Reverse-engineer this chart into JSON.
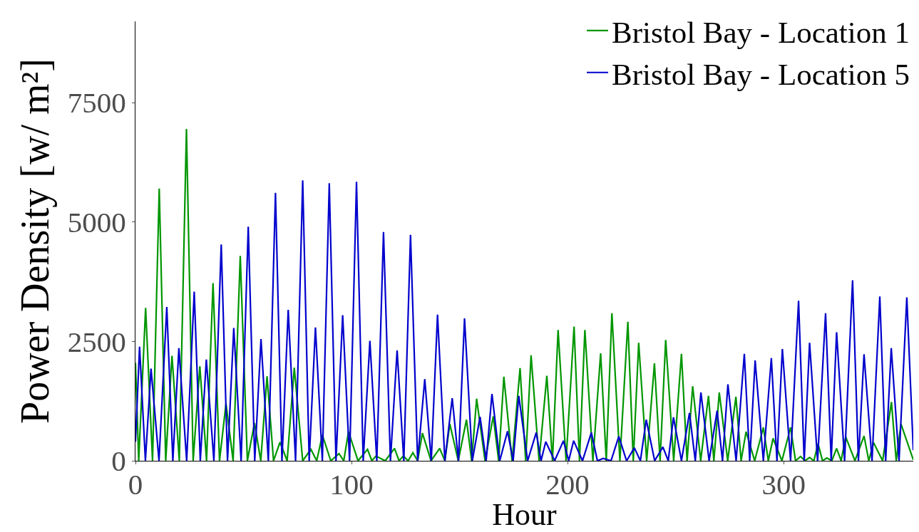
{
  "chart_data": {
    "type": "line",
    "xlabel": "Hour",
    "ylabel": "Power Density [w/ m²]",
    "xlim": [
      0,
      360
    ],
    "ylim": [
      0,
      9200
    ],
    "xticks": [
      0,
      100,
      200,
      300
    ],
    "yticks": [
      0,
      2500,
      5000,
      7500
    ],
    "grid": false,
    "legend": "top right",
    "marker": "none",
    "line_style": "solid",
    "series": [
      {
        "name": "Bristol Bay - Location 1",
        "color": "#009600",
        "x": [
          0,
          1.5,
          4.7,
          7.9,
          11.0,
          14.0,
          16.9,
          20.3,
          23.6,
          26.7,
          29.8,
          32.9,
          35.9,
          38.9,
          41.9,
          45.2,
          48.5,
          51.8,
          55.1,
          58.0,
          60.9,
          63.9,
          66.9,
          70.2,
          73.5,
          77.4,
          81.2,
          83.9,
          86.5,
          90.4,
          94.2,
          96.4,
          98.6,
          103.0,
          107.4,
          109.4,
          111.3,
          115.6,
          119.9,
          122.0,
          124.0,
          126.2,
          128.4,
          130.6,
          132.8,
          136.8,
          140.8,
          143.2,
          145.5,
          149.4,
          153.2,
          155.6,
          157.9,
          161.8,
          165.6,
          168.1,
          170.5,
          174.3,
          178.0,
          180.6,
          183.1,
          186.8,
          190.4,
          193.0,
          195.6,
          199.3,
          203.0,
          205.5,
          208.0,
          211.7,
          215.3,
          217.9,
          220.5,
          224.2,
          227.9,
          230.4,
          232.9,
          236.6,
          240.2,
          242.8,
          245.4,
          249.1,
          252.7,
          255.3,
          257.9,
          261.6,
          265.2,
          267.7,
          270.2,
          274.1,
          277.9,
          280.3,
          282.6,
          286.6,
          290.6,
          292.9,
          295.1,
          299.2,
          303.2,
          305.5,
          307.8,
          309.9,
          312.0,
          314.0,
          315.9,
          318.0,
          320.0,
          322.3,
          324.5,
          326.6,
          328.7,
          333.0,
          337.2,
          339.4,
          341.6,
          345.8,
          349.9,
          352.1,
          354.3,
          360
        ],
        "values": [
          2050,
          0,
          3200,
          0,
          5700,
          0,
          2200,
          0,
          6950,
          0,
          1980,
          0,
          3720,
          0,
          1200,
          0,
          4290,
          0,
          790,
          0,
          1770,
          0,
          390,
          0,
          1950,
          0,
          240,
          0,
          540,
          0,
          150,
          0,
          610,
          0,
          240,
          0,
          100,
          0,
          260,
          0,
          100,
          0,
          170,
          0,
          580,
          0,
          260,
          0,
          770,
          0,
          860,
          0,
          1300,
          0,
          930,
          0,
          1760,
          0,
          1940,
          0,
          2210,
          0,
          1780,
          0,
          2740,
          0,
          2810,
          0,
          2740,
          0,
          2250,
          0,
          3090,
          0,
          2910,
          0,
          2470,
          0,
          2040,
          0,
          2530,
          0,
          2240,
          0,
          1560,
          0,
          1360,
          0,
          1430,
          0,
          1340,
          0,
          610,
          0,
          700,
          0,
          470,
          0,
          700,
          0,
          90,
          0,
          70,
          0,
          360,
          0,
          60,
          0,
          260,
          0,
          500,
          0,
          520,
          0,
          380,
          0,
          1230,
          0,
          770,
          20
        ]
      },
      {
        "name": "Bristol Bay - Location 5",
        "color": "#0000cd",
        "x": [
          0,
          1.9,
          4.6,
          7.2,
          10.9,
          14.5,
          17.3,
          20.1,
          23.7,
          27.2,
          30.0,
          32.8,
          36.3,
          39.7,
          42.6,
          45.5,
          48.9,
          52.2,
          55.2,
          58.1,
          61.5,
          64.8,
          67.8,
          70.7,
          74.1,
          77.4,
          80.4,
          83.3,
          86.5,
          89.7,
          92.8,
          95.9,
          99.1,
          102.3,
          105.4,
          108.5,
          111.7,
          114.8,
          118.0,
          121.1,
          124.2,
          127.3,
          130.6,
          133.9,
          136.9,
          139.8,
          143.2,
          146.6,
          149.5,
          152.3,
          155.9,
          159.5,
          162.3,
          165.0,
          168.6,
          172.2,
          174.8,
          177.4,
          181.5,
          185.5,
          187.7,
          189.9,
          194.0,
          198.1,
          200.5,
          202.8,
          206.9,
          211.0,
          213.8,
          216.5,
          220.1,
          223.7,
          227.3,
          230.9,
          233.7,
          236.4,
          240.3,
          244.1,
          246.6,
          249.0,
          252.7,
          256.4,
          259.1,
          261.7,
          265.5,
          269.2,
          271.7,
          274.2,
          278.0,
          281.8,
          284.3,
          286.8,
          290.6,
          294.3,
          296.9,
          299.4,
          303.2,
          306.9,
          309.5,
          312.0,
          315.7,
          319.4,
          322.0,
          324.5,
          328.2,
          331.9,
          334.6,
          337.2,
          340.9,
          344.5,
          347.2,
          349.8,
          353.4,
          357.0,
          360
        ],
        "values": [
          400,
          2390,
          0,
          1930,
          0,
          3220,
          0,
          2360,
          0,
          3540,
          0,
          2120,
          0,
          4530,
          0,
          2780,
          0,
          4900,
          0,
          2550,
          0,
          5610,
          0,
          3160,
          0,
          5870,
          0,
          2790,
          0,
          5810,
          0,
          3050,
          0,
          5840,
          0,
          2510,
          0,
          4790,
          0,
          2310,
          0,
          4730,
          0,
          1710,
          0,
          3060,
          0,
          1310,
          0,
          2980,
          0,
          920,
          0,
          1400,
          0,
          620,
          0,
          1360,
          0,
          590,
          0,
          400,
          0,
          420,
          0,
          420,
          0,
          590,
          0,
          50,
          0,
          510,
          0,
          270,
          0,
          860,
          0,
          290,
          0,
          910,
          0,
          1000,
          0,
          1430,
          0,
          1050,
          0,
          1600,
          0,
          2240,
          0,
          2100,
          0,
          2150,
          0,
          2340,
          0,
          3350,
          0,
          2470,
          0,
          3090,
          0,
          2690,
          0,
          3780,
          0,
          2230,
          0,
          3440,
          0,
          2360,
          0,
          3420,
          220
        ]
      }
    ]
  }
}
